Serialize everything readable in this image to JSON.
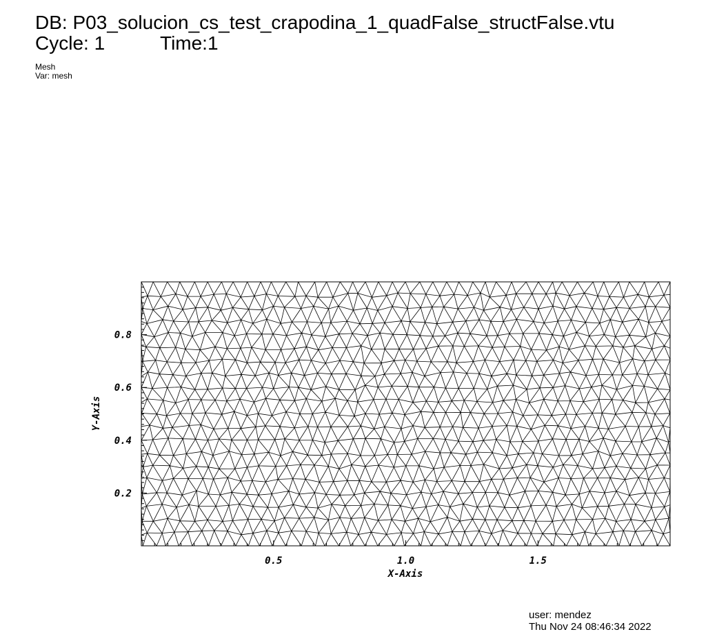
{
  "header": {
    "db_line": "DB: P03_solucion_cs_test_crapodina_1_quadFalse_structFalse.vtu",
    "cycle": "Cycle: 1",
    "time": "Time:1"
  },
  "legend": {
    "plot_type": "Mesh",
    "variable": "Var: mesh"
  },
  "axes": {
    "x_title": "X-Axis",
    "y_title": "Y-Axis",
    "x_range": [
      0.0,
      2.0
    ],
    "y_range": [
      0.0,
      1.0
    ],
    "x_ticks": [
      {
        "value": 0.5,
        "label": "0.5"
      },
      {
        "value": 1.0,
        "label": "1.0"
      },
      {
        "value": 1.5,
        "label": "1.5"
      }
    ],
    "y_ticks": [
      {
        "value": 0.2,
        "label": "0.2"
      },
      {
        "value": 0.4,
        "label": "0.4"
      },
      {
        "value": 0.6,
        "label": "0.6"
      },
      {
        "value": 0.8,
        "label": "0.8"
      }
    ]
  },
  "mesh": {
    "element_type": "triangle",
    "line_color": "#000000"
  },
  "footer": {
    "user": "user: mendez",
    "timestamp": "Thu Nov 24 08:46:34 2022"
  }
}
